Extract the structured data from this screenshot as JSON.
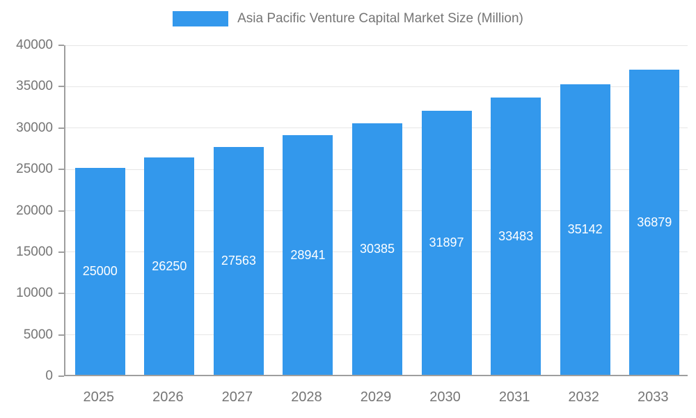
{
  "legend": {
    "title": "Asia Pacific Venture Capital Market Size (Million)"
  },
  "colors": {
    "bar": "#3398EC",
    "axis_text": "#757575",
    "grid_line": "#E6E6E6",
    "axis_line": "#9E9E9E",
    "value_label": "#FFFFFF",
    "background": "#FFFFFF"
  },
  "chart_data": {
    "type": "bar",
    "title": "Asia Pacific Venture Capital Market Size (Million)",
    "categories": [
      "2025",
      "2026",
      "2027",
      "2028",
      "2029",
      "2030",
      "2031",
      "2032",
      "2033"
    ],
    "values": [
      25000,
      26250,
      27563,
      28941,
      30385,
      31897,
      33483,
      35142,
      36879
    ],
    "xlabel": "",
    "ylabel": "",
    "ylim": [
      0,
      40000
    ],
    "yticks": [
      0,
      5000,
      10000,
      15000,
      20000,
      25000,
      30000,
      35000,
      40000
    ],
    "grid": true,
    "legend_position": "top",
    "value_labels": "inside-center-white"
  }
}
